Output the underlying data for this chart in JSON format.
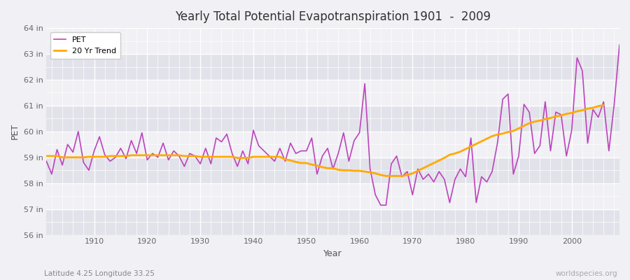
{
  "title": "Yearly Total Potential Evapotranspiration 1901  -  2009",
  "xlabel": "Year",
  "ylabel": "PET",
  "subtitle": "Latitude 4.25 Longitude 33.25",
  "watermark": "worldspecies.org",
  "bg_color": "#f0f0f5",
  "plot_bg_color": "#f0f0f5",
  "band_color_dark": "#e2e2ea",
  "band_color_light": "#f0f0f5",
  "grid_color": "#ffffff",
  "pet_color": "#bb44bb",
  "trend_color": "#ffaa00",
  "ylim": [
    56,
    64
  ],
  "ytick_values": [
    56,
    57,
    58,
    59,
    60,
    61,
    62,
    63,
    64
  ],
  "years": [
    1901,
    1902,
    1903,
    1904,
    1905,
    1906,
    1907,
    1908,
    1909,
    1910,
    1911,
    1912,
    1913,
    1914,
    1915,
    1916,
    1917,
    1918,
    1919,
    1920,
    1921,
    1922,
    1923,
    1924,
    1925,
    1926,
    1927,
    1928,
    1929,
    1930,
    1931,
    1932,
    1933,
    1934,
    1935,
    1936,
    1937,
    1938,
    1939,
    1940,
    1941,
    1942,
    1943,
    1944,
    1945,
    1946,
    1947,
    1948,
    1949,
    1950,
    1951,
    1952,
    1953,
    1954,
    1955,
    1956,
    1957,
    1958,
    1959,
    1960,
    1961,
    1962,
    1963,
    1964,
    1965,
    1966,
    1967,
    1968,
    1969,
    1970,
    1971,
    1972,
    1973,
    1974,
    1975,
    1976,
    1977,
    1978,
    1979,
    1980,
    1981,
    1982,
    1983,
    1984,
    1985,
    1986,
    1987,
    1988,
    1989,
    1990,
    1991,
    1992,
    1993,
    1994,
    1995,
    1996,
    1997,
    1998,
    1999,
    2000,
    2001,
    2002,
    2003,
    2004,
    2005,
    2006,
    2007,
    2008,
    2009
  ],
  "pet_values": [
    58.85,
    58.35,
    59.3,
    58.7,
    59.5,
    59.2,
    60.0,
    58.8,
    58.5,
    59.25,
    59.8,
    59.1,
    58.85,
    59.0,
    59.35,
    58.95,
    59.65,
    59.15,
    59.95,
    58.9,
    59.15,
    59.0,
    59.55,
    58.9,
    59.25,
    59.05,
    58.65,
    59.15,
    59.05,
    58.75,
    59.35,
    58.75,
    59.75,
    59.6,
    59.9,
    59.15,
    58.65,
    59.25,
    58.75,
    60.05,
    59.45,
    59.25,
    59.05,
    58.85,
    59.35,
    58.85,
    59.55,
    59.15,
    59.25,
    59.25,
    59.75,
    58.35,
    59.05,
    59.35,
    58.55,
    59.15,
    59.95,
    58.85,
    59.65,
    59.95,
    61.85,
    58.55,
    57.55,
    57.15,
    57.15,
    58.75,
    59.05,
    58.25,
    58.45,
    57.55,
    58.55,
    58.15,
    58.35,
    58.05,
    58.45,
    58.15,
    57.25,
    58.15,
    58.55,
    58.25,
    59.75,
    57.25,
    58.25,
    58.05,
    58.45,
    59.55,
    61.25,
    61.45,
    58.35,
    59.05,
    61.05,
    60.75,
    59.15,
    59.45,
    61.15,
    59.25,
    60.75,
    60.65,
    59.05,
    60.05,
    62.85,
    62.35,
    59.55,
    60.85,
    60.55,
    61.15,
    59.25,
    61.05,
    63.35
  ],
  "trend_values": [
    59.05,
    59.05,
    59.05,
    59.0,
    59.0,
    59.0,
    59.0,
    59.0,
    59.02,
    59.02,
    59.02,
    59.02,
    59.05,
    59.05,
    59.05,
    59.05,
    59.08,
    59.08,
    59.08,
    59.08,
    59.08,
    59.08,
    59.08,
    59.08,
    59.08,
    59.08,
    59.05,
    59.05,
    59.05,
    59.02,
    59.02,
    59.02,
    59.02,
    59.02,
    59.02,
    59.02,
    58.98,
    58.98,
    58.98,
    59.02,
    59.02,
    59.02,
    59.02,
    59.02,
    59.02,
    58.92,
    58.88,
    58.82,
    58.78,
    58.78,
    58.72,
    58.68,
    58.62,
    58.58,
    58.58,
    58.52,
    58.5,
    58.5,
    58.48,
    58.48,
    58.45,
    58.42,
    58.38,
    58.32,
    58.28,
    58.28,
    58.28,
    58.28,
    58.32,
    58.38,
    58.48,
    58.58,
    58.68,
    58.78,
    58.88,
    58.98,
    59.1,
    59.15,
    59.22,
    59.32,
    59.42,
    59.52,
    59.62,
    59.72,
    59.82,
    59.88,
    59.92,
    59.98,
    60.02,
    60.12,
    60.22,
    60.32,
    60.38,
    60.42,
    60.48,
    60.52,
    60.58,
    60.62,
    60.68,
    60.72,
    60.78,
    60.82,
    60.88,
    60.92,
    60.98,
    61.02,
    null,
    null,
    null
  ]
}
